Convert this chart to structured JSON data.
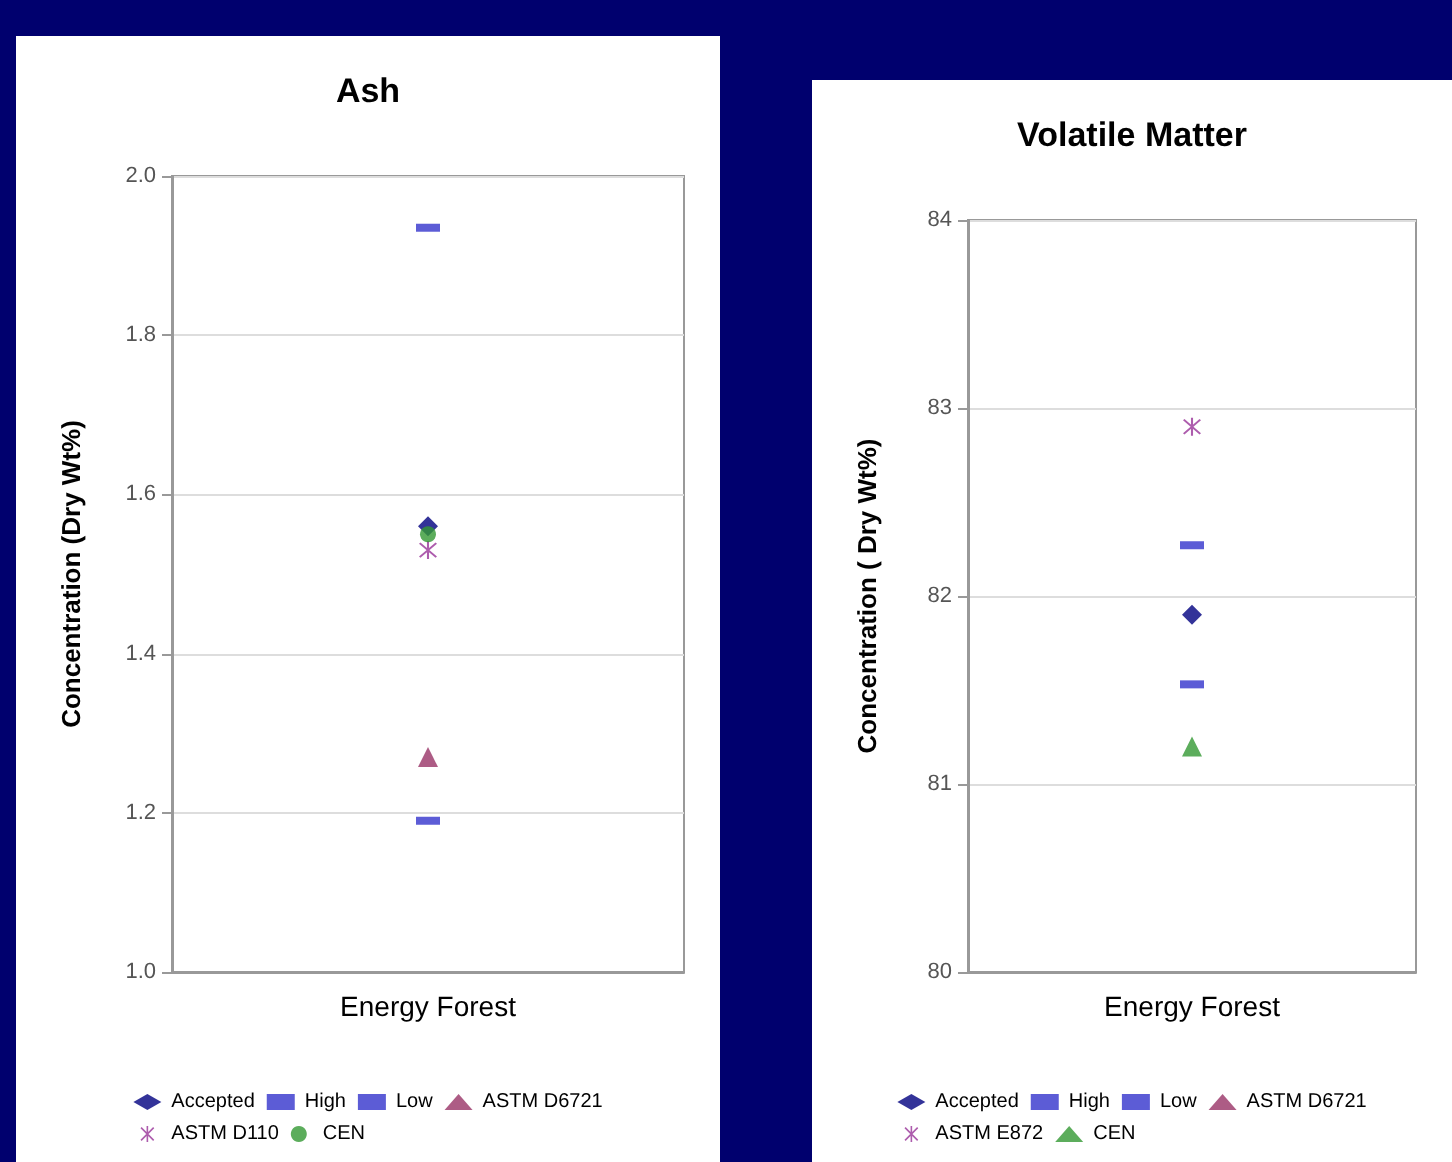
{
  "chart_data": [
    {
      "type": "scatter",
      "title": "Ash",
      "ylabel": "Concentration (Dry Wt%)",
      "categories": [
        "Energy Forest"
      ],
      "ylim": [
        1.0,
        2.0
      ],
      "yticks": [
        {
          "value": 1.0,
          "label": "1.0"
        },
        1.2,
        1.4,
        1.6,
        1.8,
        {
          "value": 2.0,
          "label": "2.0"
        }
      ],
      "grid": "y",
      "legend": "bottom",
      "series": [
        {
          "name": "Accepted",
          "color": "#000080",
          "marker": "diamond",
          "values": [
            1.56
          ]
        },
        {
          "name": "High",
          "color": "#3333cc",
          "marker": "square",
          "values": [
            1.935
          ]
        },
        {
          "name": "Low",
          "color": "#3333cc",
          "marker": "square",
          "values": [
            1.19
          ]
        },
        {
          "name": "ASTM D6721",
          "color": "#993366",
          "marker": "triangle",
          "values": [
            1.27
          ]
        },
        {
          "name": "ASTM D110",
          "color": "#993399",
          "marker": "cross",
          "values": [
            1.53
          ]
        },
        {
          "name": "CEN",
          "color": "#339933",
          "marker": "circle",
          "values": [
            1.55
          ]
        }
      ]
    },
    {
      "type": "scatter",
      "title": "Volatile Matter",
      "ylabel": "Concentration ( Dry Wt%)",
      "categories": [
        "Energy Forest"
      ],
      "ylim": [
        80,
        84
      ],
      "yticks": [
        80,
        81,
        82,
        83,
        84
      ],
      "grid": "y",
      "legend": "bottom",
      "series": [
        {
          "name": "Accepted",
          "color": "#000080",
          "marker": "diamond",
          "values": [
            81.9
          ]
        },
        {
          "name": "High",
          "color": "#3333cc",
          "marker": "square",
          "values": [
            82.27
          ]
        },
        {
          "name": "Low",
          "color": "#3333cc",
          "marker": "square",
          "values": [
            81.53
          ]
        },
        {
          "name": "ASTM D6721",
          "color": "#993366",
          "marker": "triangle",
          "values": [
            null
          ]
        },
        {
          "name": "ASTM E872",
          "color": "#993399",
          "marker": "cross",
          "values": [
            82.9
          ]
        },
        {
          "name": "CEN",
          "color": "#339933",
          "marker": "triangle",
          "values": [
            81.2
          ]
        }
      ]
    }
  ]
}
